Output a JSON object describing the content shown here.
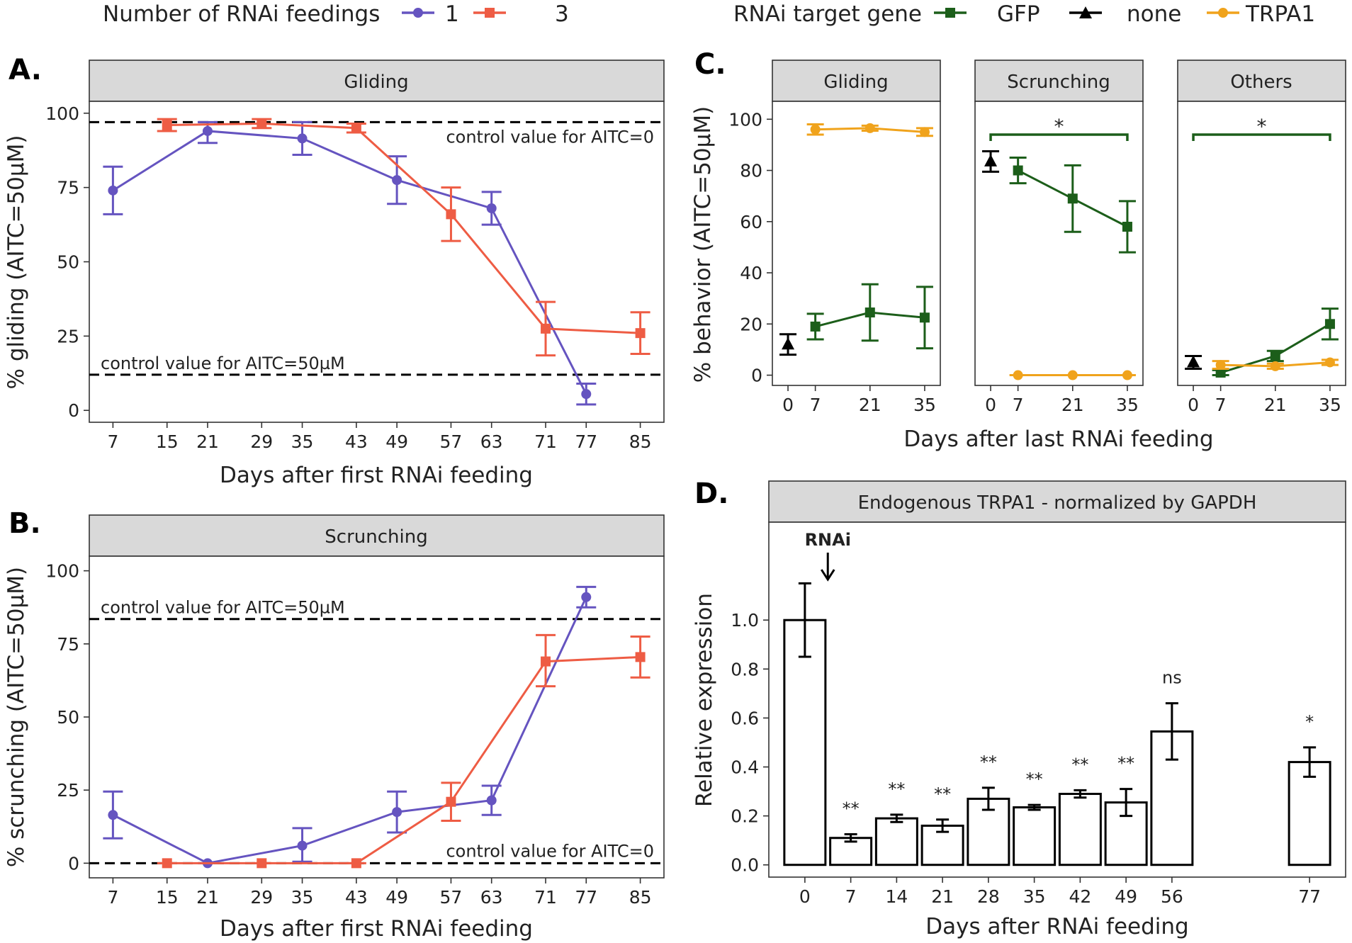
{
  "colors": {
    "feed1": "#6554c0",
    "feed3": "#ee5c44",
    "gfp": "#1c5e1a",
    "none": "#000000",
    "trpa1": "#f0a31c",
    "strip": "#d9d9d9"
  },
  "legend_left": {
    "title": "Number of RNAi feedings",
    "items": [
      {
        "label": "1",
        "color_key": "feed1",
        "shape": "circle"
      },
      {
        "label": "3",
        "color_key": "feed3",
        "shape": "square"
      }
    ]
  },
  "legend_right": {
    "title": "RNAi target gene",
    "items": [
      {
        "label": "GFP",
        "color_key": "gfp",
        "shape": "square"
      },
      {
        "label": "none",
        "color_key": "none",
        "shape": "triangle"
      },
      {
        "label": "TRPA1",
        "color_key": "trpa1",
        "shape": "circle"
      }
    ]
  },
  "chart_data": [
    {
      "panel": "A.",
      "type": "line",
      "strip": "Gliding",
      "xlabel": "Days after first RNAi feeding",
      "ylabel": "% gliding (AITC=50µM)",
      "x_ticks": [
        7,
        15,
        21,
        29,
        35,
        43,
        49,
        57,
        63,
        71,
        77,
        85
      ],
      "xlim": [
        3.5,
        88.5
      ],
      "y_ticks": [
        0,
        25,
        50,
        75,
        100
      ],
      "ylim": [
        -4,
        104
      ],
      "hlines": [
        {
          "y": 97,
          "label": "control value for AITC=0",
          "label_pos": "right-below"
        },
        {
          "y": 12,
          "label": "control value for AITC=50µM",
          "label_pos": "left-above"
        }
      ],
      "series": [
        {
          "name": "1",
          "color_key": "feed1",
          "shape": "circle",
          "points": [
            {
              "x": 7,
              "y": 74,
              "lo": 66,
              "hi": 82
            },
            {
              "x": 21,
              "y": 94,
              "lo": 90,
              "hi": 97
            },
            {
              "x": 35,
              "y": 91.5,
              "lo": 86,
              "hi": 97
            },
            {
              "x": 49,
              "y": 77.5,
              "lo": 69.5,
              "hi": 85.5
            },
            {
              "x": 63,
              "y": 68,
              "lo": 62.5,
              "hi": 73.5
            },
            {
              "x": 77,
              "y": 5.5,
              "lo": 2,
              "hi": 9
            }
          ]
        },
        {
          "name": "3",
          "color_key": "feed3",
          "shape": "square",
          "points": [
            {
              "x": 15,
              "y": 96,
              "lo": 94,
              "hi": 98
            },
            {
              "x": 29,
              "y": 96.5,
              "lo": 95,
              "hi": 98
            },
            {
              "x": 43,
              "y": 95,
              "lo": 93.5,
              "hi": 96.5
            },
            {
              "x": 57,
              "y": 66,
              "lo": 57,
              "hi": 75
            },
            {
              "x": 71,
              "y": 27.5,
              "lo": 18.5,
              "hi": 36.5
            },
            {
              "x": 85,
              "y": 26,
              "lo": 19,
              "hi": 33
            }
          ]
        }
      ]
    },
    {
      "panel": "B.",
      "type": "line",
      "strip": "Scrunching",
      "xlabel": "Days after first RNAi feeding",
      "ylabel": "% scrunching (AITC=50µM)",
      "x_ticks": [
        7,
        15,
        21,
        29,
        35,
        43,
        49,
        57,
        63,
        71,
        77,
        85
      ],
      "xlim": [
        3.5,
        88.5
      ],
      "y_ticks": [
        0,
        25,
        50,
        75,
        100
      ],
      "ylim": [
        -5,
        105
      ],
      "hlines": [
        {
          "y": 83.5,
          "label": "control value for AITC=50µM",
          "label_pos": "left-above"
        },
        {
          "y": 0,
          "label": "control value for AITC=0",
          "label_pos": "right-above"
        }
      ],
      "series": [
        {
          "name": "1",
          "color_key": "feed1",
          "shape": "circle",
          "points": [
            {
              "x": 7,
              "y": 16.5,
              "lo": 8.5,
              "hi": 24.5
            },
            {
              "x": 21,
              "y": 0,
              "lo": 0,
              "hi": 0
            },
            {
              "x": 35,
              "y": 6,
              "lo": 0.5,
              "hi": 12
            },
            {
              "x": 49,
              "y": 17.5,
              "lo": 10.5,
              "hi": 24.5
            },
            {
              "x": 63,
              "y": 21.5,
              "lo": 16.5,
              "hi": 26.5
            },
            {
              "x": 77,
              "y": 91,
              "lo": 87.5,
              "hi": 94.5
            }
          ]
        },
        {
          "name": "3",
          "color_key": "feed3",
          "shape": "square",
          "points": [
            {
              "x": 15,
              "y": 0,
              "lo": 0,
              "hi": 0
            },
            {
              "x": 29,
              "y": 0,
              "lo": 0,
              "hi": 0
            },
            {
              "x": 43,
              "y": 0,
              "lo": 0,
              "hi": 0
            },
            {
              "x": 57,
              "y": 21,
              "lo": 14.5,
              "hi": 27.5
            },
            {
              "x": 71,
              "y": 69,
              "lo": 60.5,
              "hi": 78
            },
            {
              "x": 85,
              "y": 70.5,
              "lo": 63.5,
              "hi": 77.5
            }
          ]
        }
      ]
    },
    {
      "panel": "C.",
      "type": "line",
      "xlabel": "Days after last RNAi feeding",
      "ylabel": "% behavior (AITC=50µM)",
      "x_ticks": [
        0,
        7,
        21,
        35
      ],
      "xlim": [
        -4,
        39
      ],
      "y_ticks": [
        0,
        20,
        40,
        60,
        80,
        100
      ],
      "ylim": [
        -4,
        107
      ],
      "facets": [
        {
          "strip": "Gliding",
          "series": [
            {
              "name": "GFP",
              "color_key": "gfp",
              "shape": "square",
              "points": [
                {
                  "x": 7,
                  "y": 19,
                  "lo": 14,
                  "hi": 24
                },
                {
                  "x": 21,
                  "y": 24.5,
                  "lo": 13.5,
                  "hi": 35.5
                },
                {
                  "x": 35,
                  "y": 22.5,
                  "lo": 10.5,
                  "hi": 34.5
                }
              ]
            },
            {
              "name": "none",
              "color_key": "none",
              "shape": "triangle",
              "points": [
                {
                  "x": 0,
                  "y": 12,
                  "lo": 8,
                  "hi": 16
                }
              ]
            },
            {
              "name": "TRPA1",
              "color_key": "trpa1",
              "shape": "circle",
              "points": [
                {
                  "x": 7,
                  "y": 96,
                  "lo": 94,
                  "hi": 98
                },
                {
                  "x": 21,
                  "y": 96.5,
                  "lo": 95.5,
                  "hi": 97.5
                },
                {
                  "x": 35,
                  "y": 95,
                  "lo": 93.5,
                  "hi": 96.5
                }
              ]
            }
          ],
          "bracket": null
        },
        {
          "strip": "Scrunching",
          "series": [
            {
              "name": "GFP",
              "color_key": "gfp",
              "shape": "square",
              "points": [
                {
                  "x": 7,
                  "y": 80,
                  "lo": 75,
                  "hi": 85
                },
                {
                  "x": 21,
                  "y": 69,
                  "lo": 56,
                  "hi": 82
                },
                {
                  "x": 35,
                  "y": 58,
                  "lo": 48,
                  "hi": 68
                }
              ]
            },
            {
              "name": "none",
              "color_key": "none",
              "shape": "triangle",
              "points": [
                {
                  "x": 0,
                  "y": 83.5,
                  "lo": 79.5,
                  "hi": 87.5
                }
              ]
            },
            {
              "name": "TRPA1",
              "color_key": "trpa1",
              "shape": "circle",
              "points": [
                {
                  "x": 7,
                  "y": 0,
                  "lo": 0,
                  "hi": 0
                },
                {
                  "x": 21,
                  "y": 0,
                  "lo": 0,
                  "hi": 0
                },
                {
                  "x": 35,
                  "y": 0,
                  "lo": 0,
                  "hi": 0
                }
              ]
            }
          ],
          "bracket": {
            "x1": 0,
            "x2": 35,
            "y": 94,
            "label": "*",
            "color_key": "gfp"
          }
        },
        {
          "strip": "Others",
          "series": [
            {
              "name": "GFP",
              "color_key": "gfp",
              "shape": "square",
              "points": [
                {
                  "x": 7,
                  "y": 1,
                  "lo": 0,
                  "hi": 2
                },
                {
                  "x": 21,
                  "y": 7.5,
                  "lo": 5.5,
                  "hi": 9.5
                },
                {
                  "x": 35,
                  "y": 20,
                  "lo": 14,
                  "hi": 26
                }
              ]
            },
            {
              "name": "none",
              "color_key": "none",
              "shape": "triangle",
              "points": [
                {
                  "x": 0,
                  "y": 5,
                  "lo": 2.5,
                  "hi": 7.5
                }
              ]
            },
            {
              "name": "TRPA1",
              "color_key": "trpa1",
              "shape": "circle",
              "points": [
                {
                  "x": 7,
                  "y": 4,
                  "lo": 2.5,
                  "hi": 5.5
                },
                {
                  "x": 21,
                  "y": 3.5,
                  "lo": 2.5,
                  "hi": 4.5
                },
                {
                  "x": 35,
                  "y": 5,
                  "lo": 4,
                  "hi": 6
                }
              ]
            }
          ],
          "bracket": {
            "x1": 0,
            "x2": 35,
            "y": 94,
            "label": "*",
            "color_key": "gfp"
          }
        }
      ]
    },
    {
      "panel": "D.",
      "type": "bar",
      "strip": "Endogenous TRPA1 - normalized by GAPDH",
      "xlabel": "Days after RNAi feeding",
      "ylabel": "Relative expression",
      "categories": [
        "0",
        "7",
        "14",
        "21",
        "28",
        "35",
        "42",
        "49",
        "56",
        "77"
      ],
      "x": [
        0,
        7,
        14,
        21,
        28,
        35,
        42,
        49,
        56,
        77
      ],
      "xlim": [
        -5.5,
        82.5
      ],
      "values": [
        1.0,
        0.11,
        0.19,
        0.16,
        0.27,
        0.235,
        0.29,
        0.255,
        0.545,
        0.42
      ],
      "err_lo": [
        0.85,
        0.095,
        0.175,
        0.135,
        0.225,
        0.225,
        0.275,
        0.2,
        0.43,
        0.36
      ],
      "err_hi": [
        1.15,
        0.125,
        0.205,
        0.185,
        0.315,
        0.245,
        0.305,
        0.31,
        0.66,
        0.48
      ],
      "significance": [
        "",
        "**",
        "**",
        "**",
        "**",
        "**",
        "**",
        "**",
        "ns",
        "*"
      ],
      "y_ticks": [
        0.0,
        0.2,
        0.4,
        0.6,
        0.8,
        1.0
      ],
      "ylim": [
        -0.05,
        1.4
      ],
      "annotation": {
        "label": "RNAi",
        "x": 3.5
      }
    }
  ]
}
